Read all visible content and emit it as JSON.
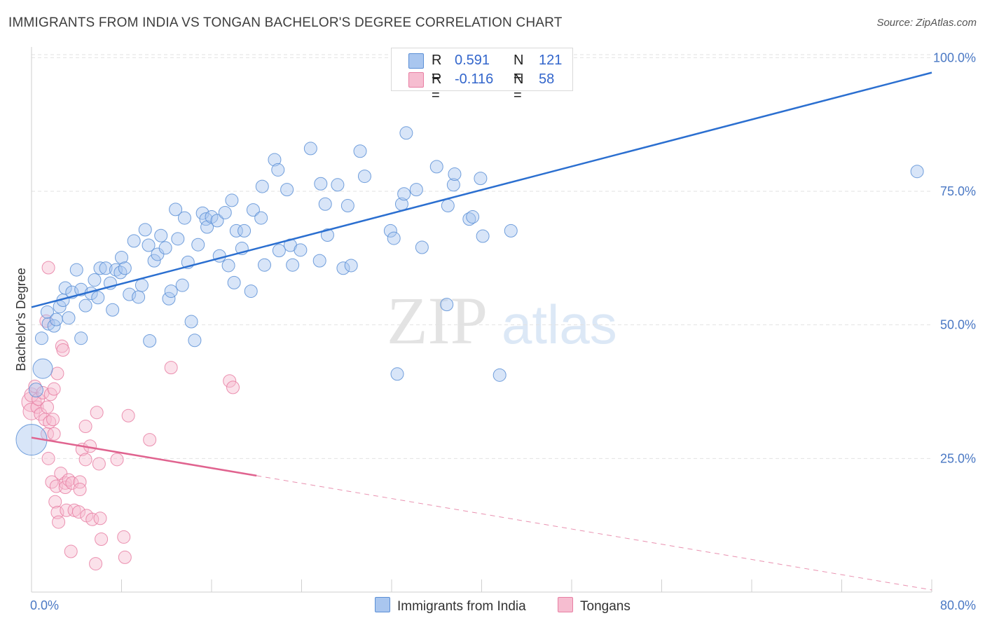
{
  "title": "IMMIGRANTS FROM INDIA VS TONGAN BACHELOR'S DEGREE CORRELATION CHART",
  "source": "Source: ZipAtlas.com",
  "watermark": {
    "zip": "ZIP",
    "atlas": "atlas"
  },
  "legend": {
    "india": {
      "r_label": "R =",
      "r_value": "0.591",
      "n_label": "N =",
      "n_value": "121"
    },
    "tongan": {
      "r_label": "R =",
      "r_value": "-0.116",
      "n_label": "N =",
      "n_value": "58"
    }
  },
  "bottom_legend": {
    "india": "Immigrants from India",
    "tongan": "Tongans"
  },
  "colors": {
    "india_fill": "#a9c6ef",
    "india_stroke": "#5b8fd6",
    "india_line": "#2b6fd0",
    "tongan_fill": "#f6bdd0",
    "tongan_stroke": "#e87fa3",
    "tongan_line": "#e0638f",
    "grid": "#e2e2e2",
    "axis_text": "#4a78c4"
  },
  "chart_data": {
    "type": "scatter",
    "title": "IMMIGRANTS FROM INDIA VS TONGAN BACHELOR'S DEGREE CORRELATION CHART",
    "xlabel": "",
    "ylabel": "Bachelor's Degree",
    "xlim": [
      0,
      80
    ],
    "ylim": [
      0,
      102
    ],
    "x_tick_labels": [
      "0.0%",
      "80.0%"
    ],
    "y_ticks": [
      25,
      50,
      75,
      100
    ],
    "y_tick_labels": [
      "25.0%",
      "50.0%",
      "75.0%",
      "100.0%"
    ],
    "grid": true,
    "legend_position": "top-center",
    "series": [
      {
        "name": "Immigrants from India",
        "trend": {
          "x": [
            0,
            80
          ],
          "y": [
            53.3,
            97.2
          ],
          "solid_to": 80
        },
        "points": [
          [
            0.0,
            28.5,
            22
          ],
          [
            1.0,
            41.8,
            14
          ],
          [
            0.4,
            37.8,
            10
          ],
          [
            0.9,
            47.5,
            9
          ],
          [
            1.5,
            50.2,
            9
          ],
          [
            1.4,
            52.4,
            9
          ],
          [
            2.0,
            49.8,
            9
          ],
          [
            2.2,
            51.0,
            9
          ],
          [
            2.5,
            53.4,
            9
          ],
          [
            2.8,
            54.6,
            9
          ],
          [
            3.0,
            56.9,
            9
          ],
          [
            3.3,
            51.3,
            9
          ],
          [
            3.6,
            56.1,
            9
          ],
          [
            4.0,
            60.3,
            9
          ],
          [
            4.4,
            56.6,
            9
          ],
          [
            4.4,
            47.5,
            9
          ],
          [
            4.8,
            53.6,
            9
          ],
          [
            5.3,
            55.9,
            9
          ],
          [
            5.6,
            58.4,
            9
          ],
          [
            5.9,
            55.1,
            9
          ],
          [
            6.1,
            60.6,
            9
          ],
          [
            6.6,
            60.6,
            9
          ],
          [
            7.0,
            57.8,
            9
          ],
          [
            7.2,
            52.8,
            9
          ],
          [
            7.5,
            60.3,
            9
          ],
          [
            7.9,
            59.8,
            9
          ],
          [
            8.0,
            62.6,
            9
          ],
          [
            8.3,
            60.6,
            9
          ],
          [
            8.7,
            55.7,
            9
          ],
          [
            9.1,
            65.7,
            9
          ],
          [
            9.5,
            55.2,
            9
          ],
          [
            9.8,
            57.4,
            9
          ],
          [
            10.1,
            67.8,
            9
          ],
          [
            10.4,
            64.9,
            9
          ],
          [
            10.5,
            47.0,
            9
          ],
          [
            10.9,
            62.0,
            9
          ],
          [
            11.2,
            63.2,
            9
          ],
          [
            11.5,
            66.7,
            9
          ],
          [
            11.9,
            64.4,
            9
          ],
          [
            12.2,
            54.9,
            9
          ],
          [
            12.4,
            56.3,
            9
          ],
          [
            12.8,
            71.6,
            9
          ],
          [
            13.0,
            66.1,
            9
          ],
          [
            13.4,
            57.4,
            9
          ],
          [
            13.6,
            70.0,
            9
          ],
          [
            13.9,
            61.7,
            9
          ],
          [
            14.2,
            50.6,
            9
          ],
          [
            14.5,
            47.1,
            9
          ],
          [
            14.8,
            65.0,
            9
          ],
          [
            15.2,
            70.9,
            9
          ],
          [
            15.5,
            69.8,
            9
          ],
          [
            15.6,
            68.3,
            9
          ],
          [
            16.0,
            70.2,
            9
          ],
          [
            16.5,
            69.5,
            9
          ],
          [
            16.7,
            62.9,
            9
          ],
          [
            17.2,
            71.0,
            9
          ],
          [
            17.5,
            61.1,
            9
          ],
          [
            17.8,
            73.3,
            9
          ],
          [
            18.0,
            57.9,
            9
          ],
          [
            18.2,
            67.6,
            9
          ],
          [
            18.7,
            64.3,
            9
          ],
          [
            18.9,
            67.6,
            9
          ],
          [
            19.5,
            56.3,
            9
          ],
          [
            19.7,
            71.5,
            9
          ],
          [
            20.4,
            70.0,
            9
          ],
          [
            20.7,
            61.2,
            9
          ],
          [
            20.5,
            75.9,
            9
          ],
          [
            21.6,
            80.9,
            9
          ],
          [
            21.9,
            79.0,
            9
          ],
          [
            22.0,
            63.9,
            9
          ],
          [
            22.7,
            75.3,
            9
          ],
          [
            23.0,
            64.9,
            9
          ],
          [
            23.2,
            61.2,
            9
          ],
          [
            23.9,
            64.0,
            9
          ],
          [
            24.8,
            83.0,
            9
          ],
          [
            25.6,
            62.0,
            9
          ],
          [
            25.7,
            76.4,
            9
          ],
          [
            26.1,
            72.6,
            9
          ],
          [
            26.3,
            66.8,
            9
          ],
          [
            27.2,
            76.2,
            9
          ],
          [
            27.7,
            60.6,
            9
          ],
          [
            28.1,
            72.3,
            9
          ],
          [
            28.4,
            61.1,
            9
          ],
          [
            29.2,
            82.5,
            9
          ],
          [
            29.6,
            77.8,
            9
          ],
          [
            31.9,
            67.6,
            9
          ],
          [
            32.2,
            66.2,
            9
          ],
          [
            32.5,
            40.8,
            9
          ],
          [
            32.9,
            72.6,
            9
          ],
          [
            33.1,
            74.5,
            9
          ],
          [
            33.3,
            85.9,
            9
          ],
          [
            34.2,
            75.3,
            9
          ],
          [
            34.7,
            64.5,
            9
          ],
          [
            36.0,
            79.6,
            9
          ],
          [
            36.9,
            53.8,
            9
          ],
          [
            37.0,
            72.3,
            9
          ],
          [
            37.5,
            76.2,
            9
          ],
          [
            37.6,
            78.2,
            9
          ],
          [
            38.9,
            69.8,
            9
          ],
          [
            39.2,
            70.2,
            9
          ],
          [
            39.9,
            77.4,
            9
          ],
          [
            40.1,
            66.6,
            9
          ],
          [
            41.6,
            40.6,
            9
          ],
          [
            42.6,
            67.6,
            9
          ],
          [
            78.7,
            78.7,
            9
          ]
        ]
      },
      {
        "name": "Tongans",
        "trend": {
          "x": [
            0,
            80
          ],
          "y": [
            28.9,
            0.4
          ],
          "solid_to": 20.0
        },
        "points": [
          [
            0.0,
            35.6,
            14
          ],
          [
            0.0,
            33.8,
            12
          ],
          [
            0.0,
            36.9,
            10
          ],
          [
            0.3,
            38.5,
            9
          ],
          [
            0.5,
            34.6,
            9
          ],
          [
            0.6,
            36.1,
            9
          ],
          [
            0.8,
            33.3,
            9
          ],
          [
            1.0,
            37.3,
            9
          ],
          [
            1.2,
            32.3,
            9
          ],
          [
            1.3,
            50.7,
            9
          ],
          [
            1.4,
            34.6,
            9
          ],
          [
            1.4,
            29.6,
            9
          ],
          [
            1.5,
            60.7,
            9
          ],
          [
            1.5,
            25.0,
            9
          ],
          [
            1.6,
            31.8,
            9
          ],
          [
            1.7,
            37.0,
            9
          ],
          [
            1.8,
            20.6,
            9
          ],
          [
            1.9,
            32.3,
            9
          ],
          [
            2.0,
            38.0,
            9
          ],
          [
            2.0,
            29.6,
            9
          ],
          [
            2.1,
            16.9,
            9
          ],
          [
            2.2,
            19.8,
            9
          ],
          [
            2.3,
            40.9,
            9
          ],
          [
            2.3,
            14.9,
            9
          ],
          [
            2.4,
            13.1,
            9
          ],
          [
            2.6,
            22.2,
            9
          ],
          [
            2.7,
            46.0,
            9
          ],
          [
            2.8,
            45.3,
            9
          ],
          [
            3.0,
            20.4,
            9
          ],
          [
            3.0,
            19.6,
            9
          ],
          [
            3.1,
            15.3,
            9
          ],
          [
            3.3,
            21.0,
            9
          ],
          [
            3.5,
            7.6,
            9
          ],
          [
            3.6,
            20.4,
            9
          ],
          [
            3.8,
            15.3,
            9
          ],
          [
            4.2,
            15.0,
            9
          ],
          [
            4.3,
            20.6,
            9
          ],
          [
            4.3,
            19.2,
            9
          ],
          [
            4.5,
            26.7,
            9
          ],
          [
            4.8,
            24.8,
            9
          ],
          [
            4.8,
            31.0,
            9
          ],
          [
            4.9,
            14.3,
            9
          ],
          [
            5.2,
            27.3,
            9
          ],
          [
            5.4,
            13.6,
            9
          ],
          [
            5.7,
            5.3,
            9
          ],
          [
            5.8,
            33.6,
            9
          ],
          [
            6.0,
            24.0,
            9
          ],
          [
            6.1,
            13.8,
            9
          ],
          [
            6.2,
            9.9,
            9
          ],
          [
            7.6,
            24.8,
            9
          ],
          [
            8.2,
            10.3,
            9
          ],
          [
            8.3,
            6.5,
            9
          ],
          [
            8.6,
            33.0,
            9
          ],
          [
            10.5,
            28.5,
            9
          ],
          [
            12.4,
            42.0,
            9
          ],
          [
            17.6,
            39.5,
            9
          ],
          [
            17.9,
            38.3,
            9
          ]
        ]
      }
    ]
  }
}
